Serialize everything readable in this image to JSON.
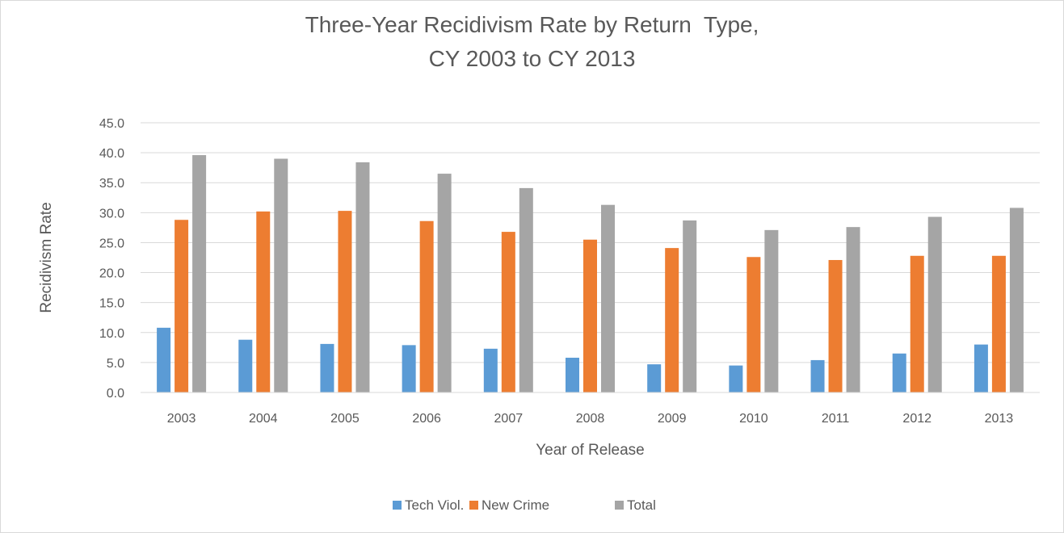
{
  "chart_data": {
    "type": "bar",
    "title_lines": [
      "Three-Year Recidivism Rate by Return  Type,",
      "CY 2003 to CY 2013"
    ],
    "xlabel": "Year of Release",
    "ylabel": "Recidivism Rate",
    "categories": [
      "2003",
      "2004",
      "2005",
      "2006",
      "2007",
      "2008",
      "2009",
      "2010",
      "2011",
      "2012",
      "2013"
    ],
    "series": [
      {
        "name": "Tech Viol.",
        "color": "#5b9bd5",
        "values": [
          10.8,
          8.8,
          8.1,
          7.9,
          7.3,
          5.8,
          4.7,
          4.5,
          5.4,
          6.5,
          8.0
        ]
      },
      {
        "name": "New Crime",
        "color": "#ed7d31",
        "values": [
          28.8,
          30.2,
          30.3,
          28.6,
          26.8,
          25.5,
          24.1,
          22.6,
          22.1,
          22.8,
          22.8
        ]
      },
      {
        "name": "Total",
        "color": "#a5a5a5",
        "values": [
          39.6,
          39.0,
          38.4,
          36.5,
          34.1,
          31.3,
          28.7,
          27.1,
          27.6,
          29.3,
          30.8
        ]
      }
    ],
    "ylim": [
      0,
      45
    ],
    "ytick_step": 5,
    "ytick_labels": [
      "0.0",
      "5.0",
      "10.0",
      "15.0",
      "20.0",
      "25.0",
      "30.0",
      "35.0",
      "40.0",
      "45.0"
    ],
    "grid": true,
    "legend_position": "bottom"
  }
}
